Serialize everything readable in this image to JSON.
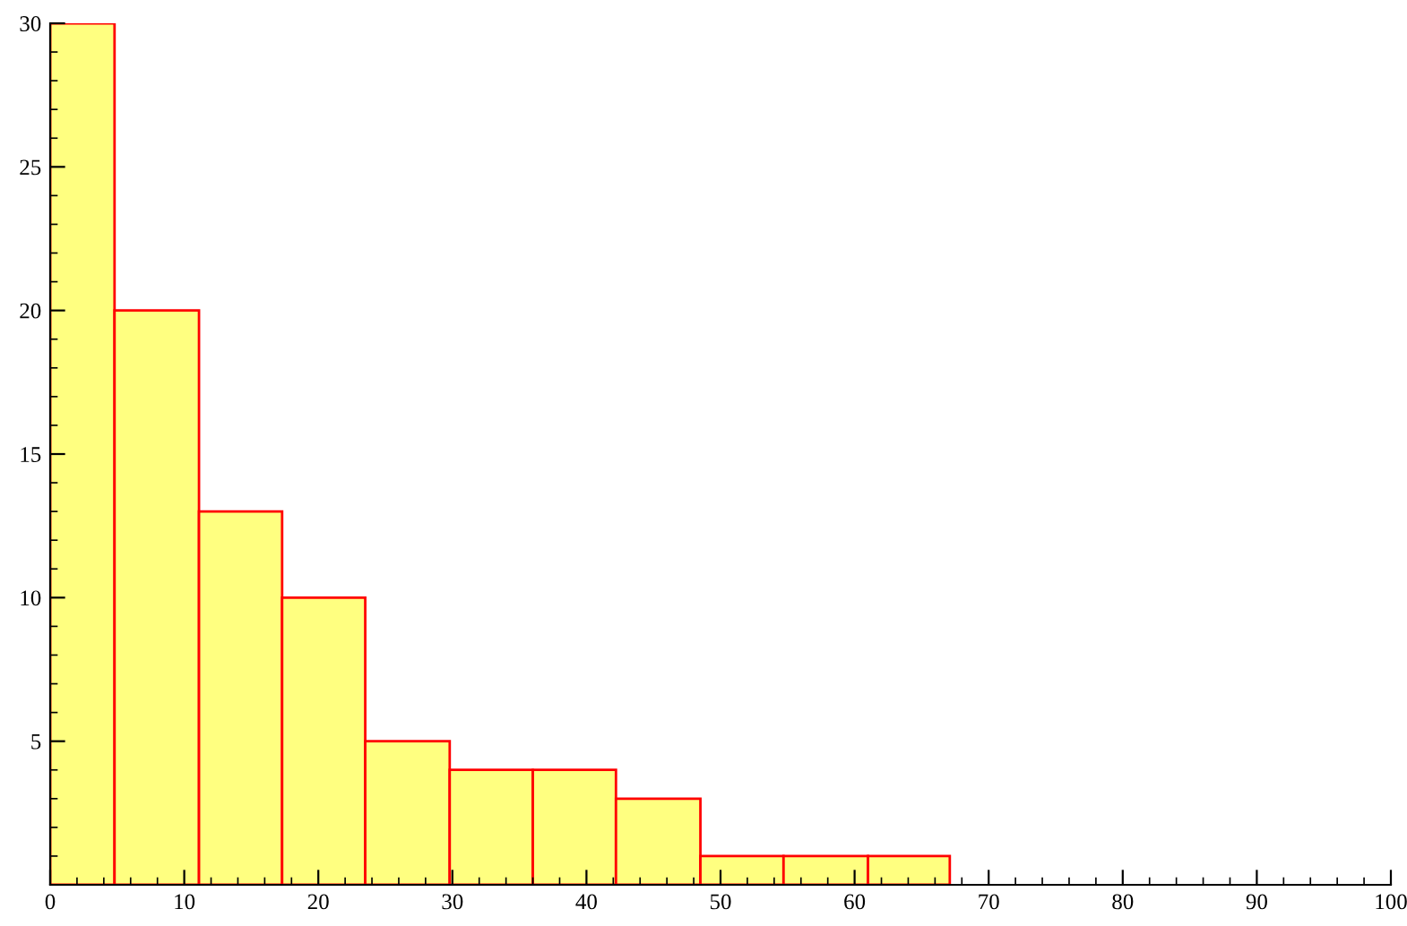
{
  "chart_data": {
    "type": "histogram",
    "bins": [
      0,
      4.8,
      11.1,
      17.3,
      23.5,
      29.8,
      36,
      42.2,
      48.5,
      54.7,
      61,
      67.1
    ],
    "values": [
      30,
      20,
      13,
      10,
      5,
      4,
      4,
      3,
      1,
      1,
      1
    ],
    "color": "#ffff80",
    "xlim": [
      0,
      100
    ],
    "xticks": [
      0,
      10,
      20,
      30,
      40,
      50,
      60,
      70,
      80,
      90,
      100
    ],
    "ylim": [
      0,
      30
    ],
    "yticks": [
      5,
      10,
      15,
      20,
      25,
      30
    ],
    "grid": false,
    "legend": false
  }
}
